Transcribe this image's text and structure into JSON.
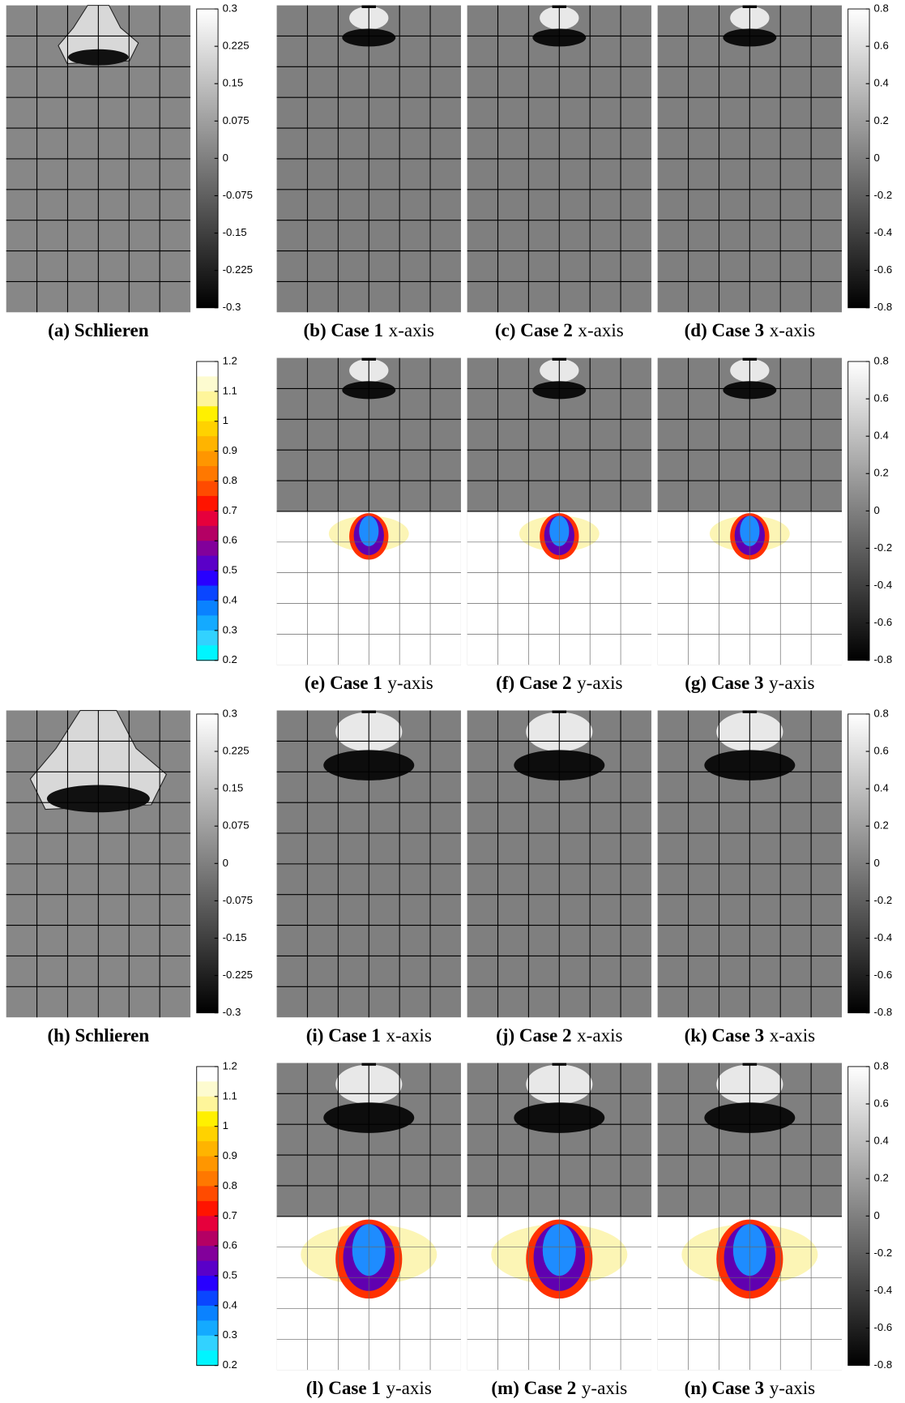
{
  "rows": [
    {
      "captions": [
        {
          "bold": "(a) Schlieren"
        },
        {
          "bold": "(b) Case 1",
          "normal": "x-axis"
        },
        {
          "bold": "(c) Case 2",
          "normal": "x-axis"
        },
        {
          "bold": "(d) Case 3",
          "normal": "x-axis"
        }
      ],
      "left_scale": [
        0.3,
        0.225,
        0.15,
        0.075,
        0,
        -0.075,
        -0.15,
        -0.225,
        -0.3
      ],
      "right_scale": [
        0.8,
        0.6,
        0.4,
        0.2,
        0,
        -0.2,
        -0.4,
        -0.6,
        -0.8
      ]
    },
    {
      "captions": [
        {
          "bold": "(e) Case 1",
          "normal": "y-axis"
        },
        {
          "bold": "(f) Case 2",
          "normal": "y-axis"
        },
        {
          "bold": "(g) Case 3",
          "normal": "y-axis"
        }
      ],
      "left_scale": [
        1.2,
        1.1,
        1,
        0.9,
        0.8,
        0.7,
        0.6,
        0.5,
        0.4,
        0.3,
        0.2
      ],
      "right_scale": [
        0.8,
        0.6,
        0.4,
        0.2,
        0,
        -0.2,
        -0.4,
        -0.6,
        -0.8
      ]
    },
    {
      "captions": [
        {
          "bold": "(h) Schlieren"
        },
        {
          "bold": "(i) Case 1",
          "normal": "x-axis"
        },
        {
          "bold": "(j) Case 2",
          "normal": "x-axis"
        },
        {
          "bold": "(k) Case 3",
          "normal": "x-axis"
        }
      ],
      "left_scale": [
        0.3,
        0.225,
        0.15,
        0.075,
        0,
        -0.075,
        -0.15,
        -0.225,
        -0.3
      ],
      "right_scale": [
        0.8,
        0.6,
        0.4,
        0.2,
        0,
        -0.2,
        -0.4,
        -0.6,
        -0.8
      ]
    },
    {
      "captions": [
        {
          "bold": "(l) Case 1",
          "normal": "y-axis"
        },
        {
          "bold": "(m) Case 2",
          "normal": "y-axis"
        },
        {
          "bold": "(n) Case 3",
          "normal": "y-axis"
        }
      ],
      "left_scale": [
        1.2,
        1.1,
        1,
        0.9,
        0.8,
        0.7,
        0.6,
        0.5,
        0.4,
        0.3,
        0.2
      ],
      "right_scale": [
        0.8,
        0.6,
        0.4,
        0.2,
        0,
        -0.2,
        -0.4,
        -0.6,
        -0.8
      ]
    }
  ]
}
